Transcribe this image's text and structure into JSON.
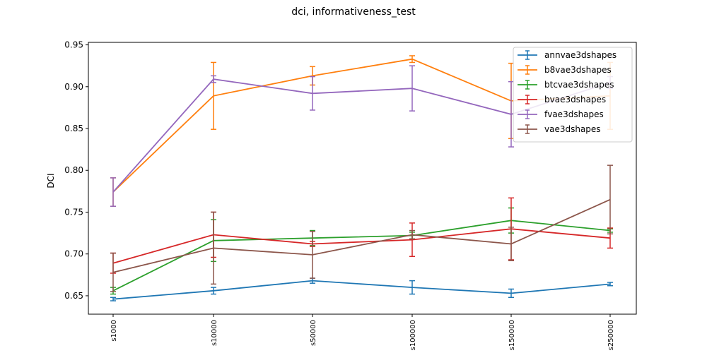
{
  "chart_data": {
    "type": "line",
    "title": "dci, informativeness_test",
    "xlabel": "",
    "ylabel": "DCI",
    "categories": [
      "s1000",
      "s10000",
      "s50000",
      "s100000",
      "s150000",
      "s250000"
    ],
    "ylim": [
      0.628,
      0.953
    ],
    "yticks": [
      0.65,
      0.7,
      0.75,
      0.8,
      0.85,
      0.9,
      0.95
    ],
    "ytick_labels": [
      "0.65",
      "0.70",
      "0.75",
      "0.80",
      "0.85",
      "0.90",
      "0.95"
    ],
    "grid": false,
    "legend_position": "top-right",
    "series": [
      {
        "name": "annvae3dshapes",
        "color": "#1f77b4",
        "values": [
          0.646,
          0.656,
          0.668,
          0.66,
          0.653,
          0.664
        ],
        "errors": [
          0.002,
          0.004,
          0.003,
          0.008,
          0.005,
          0.002
        ]
      },
      {
        "name": "b8vae3dshapes",
        "color": "#ff7f0e",
        "values": [
          0.774,
          0.889,
          0.913,
          0.933,
          0.883,
          0.889
        ],
        "errors": [
          0.017,
          0.04,
          0.011,
          0.004,
          0.045,
          0.04
        ]
      },
      {
        "name": "btcvae3dshapes",
        "color": "#2ca02c",
        "values": [
          0.656,
          0.716,
          0.719,
          0.722,
          0.74,
          0.728
        ],
        "errors": [
          0.004,
          0.025,
          0.009,
          0.004,
          0.015,
          0.002
        ]
      },
      {
        "name": "bvae3dshapes",
        "color": "#d62728",
        "values": [
          0.689,
          0.723,
          0.712,
          0.717,
          0.73,
          0.719
        ],
        "errors": [
          0.012,
          0.027,
          0.003,
          0.02,
          0.037,
          0.012
        ]
      },
      {
        "name": "fvae3dshapes",
        "color": "#9467bd",
        "values": [
          0.774,
          0.909,
          0.892,
          0.898,
          0.867,
          0.905
        ],
        "errors": [
          0.017,
          0.004,
          0.02,
          0.027,
          0.039,
          0.007
        ]
      },
      {
        "name": "vae3dshapes",
        "color": "#8c564b",
        "values": [
          0.678,
          0.707,
          0.699,
          0.723,
          0.712,
          0.765
        ],
        "errors": [
          0.023,
          0.043,
          0.028,
          0.005,
          0.02,
          0.041
        ]
      }
    ]
  }
}
